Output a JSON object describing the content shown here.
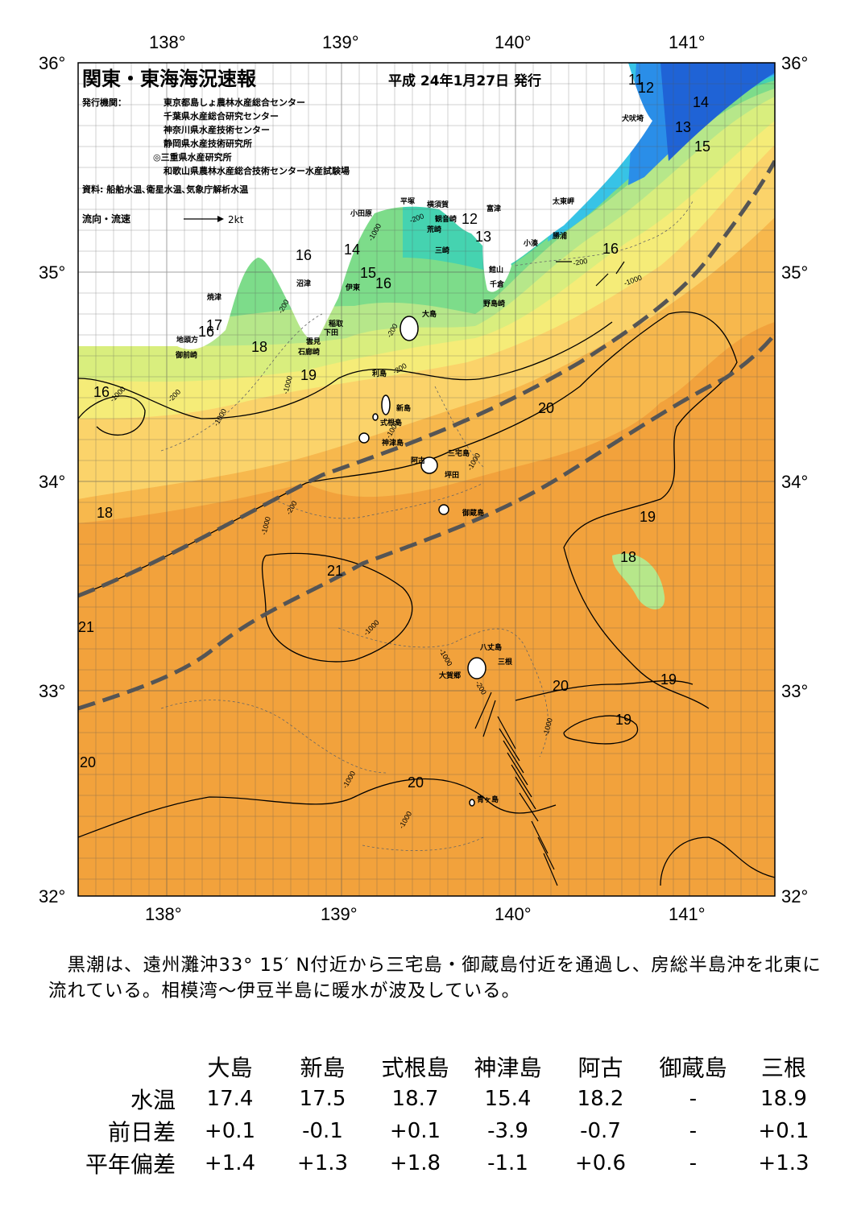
{
  "header": {
    "title": "関東・東海海況速報",
    "issue_date": "平成 24年1月27日 発行",
    "agencies_label": "発行機関：",
    "agencies": [
      "東京都島しょ農林水産総合センター",
      "千葉県水産総合研究センター",
      "神奈川県水産技術センター",
      "静岡県水産技術研究所",
      "◎三重県水産研究所",
      "和歌山県農林水産総合技術センター水産試験場"
    ],
    "sources": "資料: 船舶水温､衛星水温､気象庁解析水温",
    "legend_label": "流向・流速",
    "legend_scale": "2kt"
  },
  "axes": {
    "lon_labels": [
      "138°",
      "139°",
      "140°",
      "141°"
    ],
    "lat_labels": [
      "36°",
      "35°",
      "34°",
      "33°",
      "32°"
    ]
  },
  "colors": {
    "warm_dark": "#f2a23c",
    "warm": "#f7b84d",
    "warm_light": "#fbd36a",
    "yellow": "#f5ec78",
    "yellow_green": "#d9ee7e",
    "green_light": "#b6e78a",
    "green": "#7ddc8a",
    "teal": "#45d3b0",
    "cyan": "#37c3e6",
    "blue": "#2a8ee8",
    "blue_dark": "#1f63d6",
    "land": "#ffffff",
    "kuroshio_axis": "#555555"
  },
  "place_names": [
    "犬吠埼",
    "太東岬",
    "勝浦",
    "小湊",
    "富津",
    "観音崎",
    "横須賀",
    "平塚",
    "小田原",
    "荒崎",
    "三崎",
    "館山",
    "千倉",
    "野島崎",
    "大島",
    "利島",
    "新島",
    "式根島",
    "神津島",
    "三宅島",
    "阿古",
    "坪田",
    "御蔵島",
    "八丈島",
    "三根",
    "大賀郷",
    "青ヶ島",
    "沼津",
    "伊東",
    "稲取",
    "下田",
    "雲見",
    "石廊崎",
    "焼津",
    "地頭方",
    "御前崎"
  ],
  "isotherm_labels": [
    "11",
    "12",
    "14",
    "13",
    "15",
    "16",
    "12",
    "13",
    "16",
    "14",
    "15",
    "16",
    "17",
    "16",
    "18",
    "19",
    "16",
    "20",
    "18",
    "19",
    "18",
    "21",
    "21",
    "20",
    "19",
    "19",
    "20",
    "20"
  ],
  "depth_labels": [
    "-1000",
    "-200"
  ],
  "summary": "　黒潮は、遠州灘沖33° 15′ N付近から三宅島・御蔵島付近を通過し、房総半島沖を北東に流れている。相模湾～伊豆半島に暖水が波及している。",
  "table": {
    "columns": [
      "大島",
      "新島",
      "式根島",
      "神津島",
      "阿古",
      "御蔵島",
      "三根"
    ],
    "rows": [
      {
        "label": "水温",
        "values": [
          "17.4",
          "17.5",
          "18.7",
          "15.4",
          "18.2",
          "-",
          "18.9"
        ]
      },
      {
        "label": "前日差",
        "values": [
          "+0.1",
          "-0.1",
          "+0.1",
          "-3.9",
          "-0.7",
          "-",
          "+0.1"
        ]
      },
      {
        "label": "平年偏差",
        "values": [
          "+1.4",
          "+1.3",
          "+1.8",
          "-1.1",
          "+0.6",
          "-",
          "+1.3"
        ]
      }
    ]
  }
}
